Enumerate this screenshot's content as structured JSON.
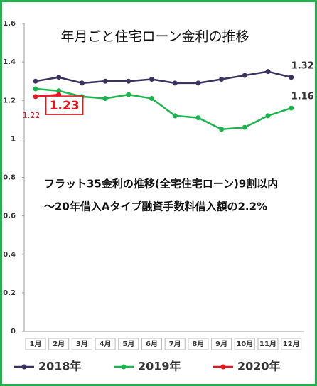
{
  "chart_data": {
    "type": "line",
    "title": "年月ごと住宅ローン金利の推移",
    "annotations": [
      "フラット35金利の推移(全宅住宅ローン)9割以内",
      "～20年借入Aタイプ融資手数料借入額の2.2%"
    ],
    "categories": [
      "1月",
      "2月",
      "3月",
      "4月",
      "5月",
      "6月",
      "7月",
      "8月",
      "9月",
      "10月",
      "11月",
      "12月"
    ],
    "series": [
      {
        "name": "2018年",
        "color": "#3c325e",
        "values": [
          1.3,
          1.32,
          1.29,
          1.3,
          1.3,
          1.31,
          1.29,
          1.29,
          1.31,
          1.33,
          1.35,
          1.32
        ]
      },
      {
        "name": "2019年",
        "color": "#1db450",
        "values": [
          1.26,
          1.25,
          1.22,
          1.21,
          1.23,
          1.21,
          1.12,
          1.11,
          1.05,
          1.06,
          1.12,
          1.16
        ]
      },
      {
        "name": "2020年",
        "color": "#e8141e",
        "values": [
          1.22,
          1.23,
          null,
          null,
          null,
          null,
          null,
          null,
          null,
          null,
          null,
          null
        ]
      }
    ],
    "ylim": [
      0,
      1.6
    ],
    "yticks": [
      0,
      0.2,
      0.4,
      0.6,
      0.8,
      1,
      1.2,
      1.4,
      1.6
    ],
    "grid": false,
    "legend": "bottom"
  }
}
